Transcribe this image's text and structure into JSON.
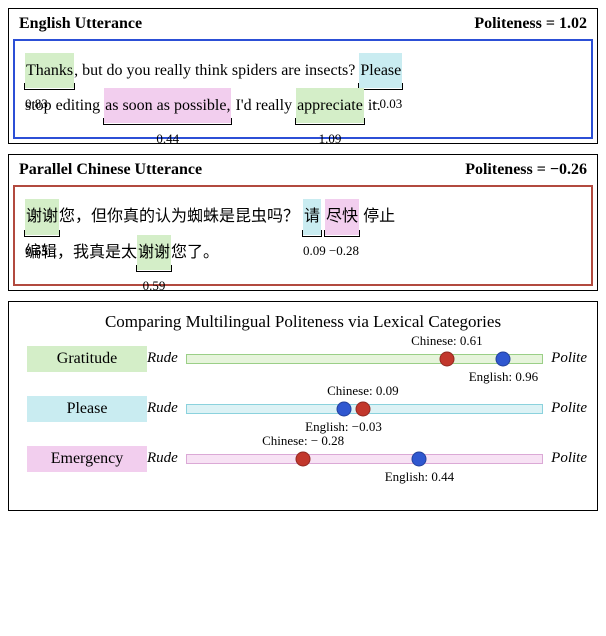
{
  "english": {
    "title": "English Utterance",
    "score_label": "Politeness = ",
    "score_value": "1.02",
    "border_color": "#2c4fd6",
    "tokens": [
      {
        "text": "Thanks",
        "highlight": "green",
        "bracket": true,
        "value": "0.83",
        "value_align": "left"
      },
      {
        "text": ", but do you really think spiders are insects? "
      },
      {
        "text": "Please",
        "highlight": "cyan",
        "bracket": true,
        "value": "−0.03",
        "value_align": "right"
      },
      {
        "text": " "
      },
      {
        "break": true
      },
      {
        "text": "stop editing "
      },
      {
        "text": "as soon as possible,",
        "highlight": "pink",
        "bracket": true,
        "value": "0.44"
      },
      {
        "text": " I'd really "
      },
      {
        "text": "appreciate",
        "highlight": "green",
        "bracket": true,
        "value": "1.09"
      },
      {
        "text": " it."
      }
    ]
  },
  "chinese": {
    "title": "Parallel Chinese Utterance",
    "score_label": "Politeness = ",
    "score_value": "−0.26",
    "border_color": "#b24a3f",
    "tokens": [
      {
        "text": "谢谢",
        "highlight": "green",
        "bracket": true,
        "value": "0.63",
        "value_align": "left"
      },
      {
        "text": "您，但你真的认为蜘蛛是昆虫吗？ "
      },
      {
        "text": "请",
        "highlight": "cyan",
        "bracket": true,
        "value": "0.09",
        "value_align": "left"
      },
      {
        "text": " "
      },
      {
        "text": "尽快",
        "highlight": "pink",
        "bracket": true,
        "value": "−0.28",
        "value_align": "right"
      },
      {
        "text": " 停止 "
      },
      {
        "break": true
      },
      {
        "text": "编辑，我真是太"
      },
      {
        "text": "谢谢",
        "highlight": "green",
        "bracket": true,
        "value": "0.59"
      },
      {
        "text": "您了。"
      }
    ]
  },
  "compare": {
    "title": "Comparing Multilingual Politeness via Lexical Categories",
    "rude_label": "Rude",
    "polite_label": "Polite",
    "scale": {
      "min": -1.0,
      "max": 1.2
    },
    "categories": [
      {
        "name": "Gratitude",
        "highlight": "green",
        "bar_style": "green",
        "chinese": {
          "value": 0.61,
          "label": "Chinese: 0.61",
          "pos": "above"
        },
        "english": {
          "value": 0.96,
          "label": "English: 0.96",
          "pos": "below"
        }
      },
      {
        "name": "Please",
        "highlight": "cyan",
        "bar_style": "cyan",
        "chinese": {
          "value": 0.09,
          "label": "Chinese: 0.09",
          "pos": "above"
        },
        "english": {
          "value": -0.03,
          "label": "English: −0.03",
          "pos": "below"
        }
      },
      {
        "name": "Emergency",
        "highlight": "pink",
        "bar_style": "pink",
        "chinese": {
          "value": -0.28,
          "label": "Chinese: − 0.28",
          "pos": "above"
        },
        "english": {
          "value": 0.44,
          "label": "English: 0.44",
          "pos": "below"
        }
      }
    ]
  },
  "colors": {
    "green": "#d4eec8",
    "cyan": "#c9ecf1",
    "pink": "#f2ceee",
    "blue_dot": "#2f57d0",
    "red_dot": "#c2372c"
  }
}
